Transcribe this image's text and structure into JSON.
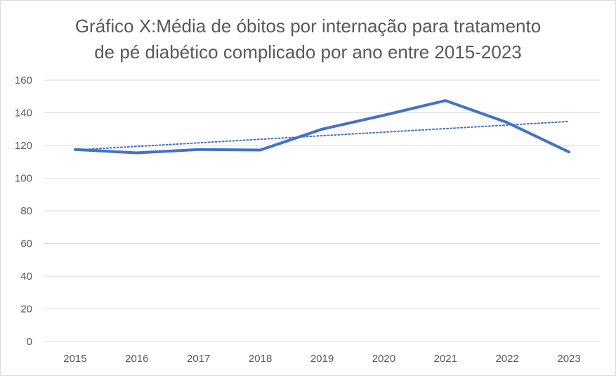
{
  "chart_data": {
    "type": "line",
    "title_lines": [
      "Gráfico X:Média de óbitos por internação para tratamento",
      "de pé diabético complicado por ano entre 2015-2023"
    ],
    "x": [
      "2015",
      "2016",
      "2017",
      "2018",
      "2019",
      "2020",
      "2021",
      "2022",
      "2023"
    ],
    "series": [
      {
        "values": [
          117.5,
          115.5,
          117.5,
          117.2,
          130,
          138.5,
          147.5,
          134,
          116
        ],
        "color": "#4472C4",
        "style": "solid"
      }
    ],
    "trendline": {
      "type": "linear",
      "color": "#4472C4",
      "style": "dotted"
    },
    "ylim": [
      0,
      160
    ],
    "yticks": [
      0,
      20,
      40,
      60,
      80,
      100,
      120,
      140,
      160
    ],
    "grid": true,
    "legend": "none",
    "xlabel": "",
    "ylabel": ""
  }
}
